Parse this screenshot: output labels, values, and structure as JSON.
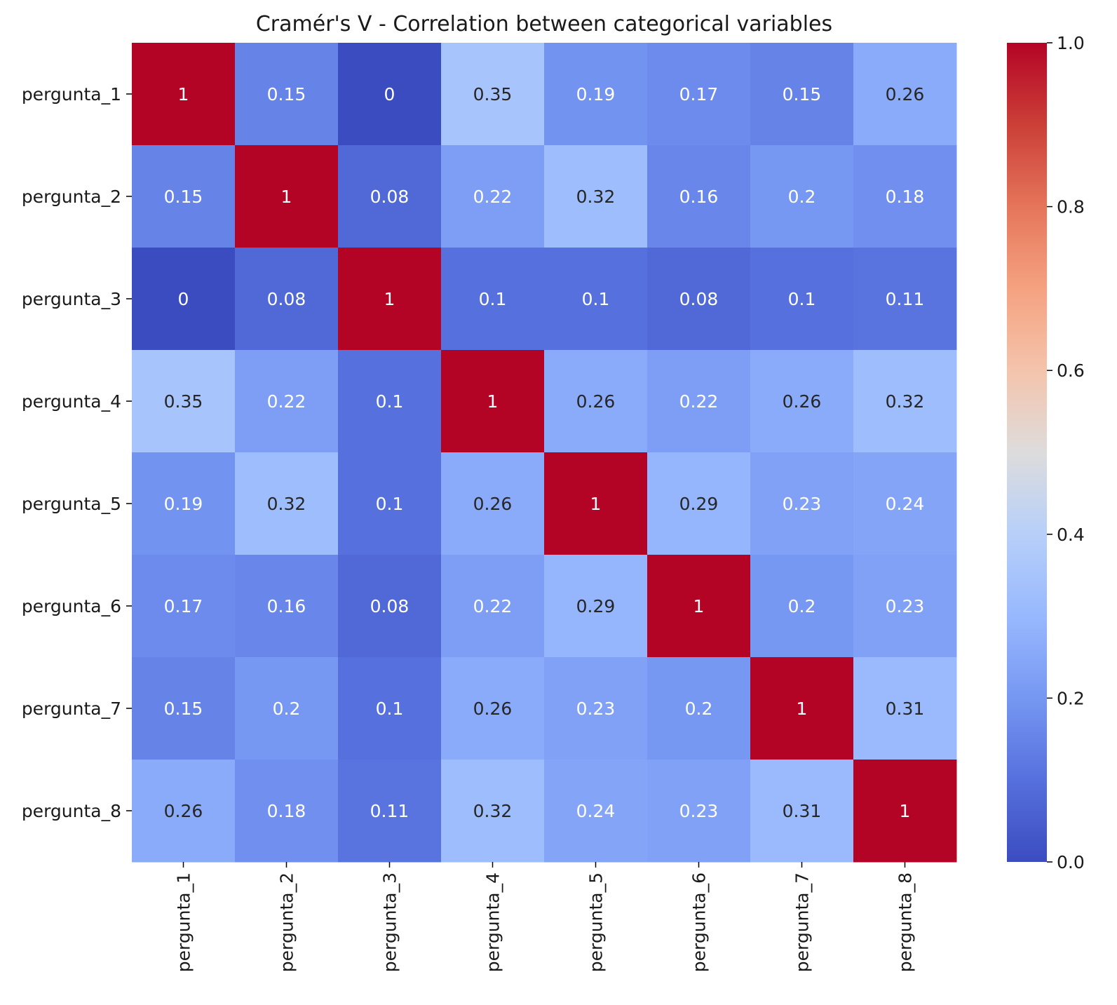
{
  "chart_data": {
    "type": "heatmap",
    "title": "Cramér's V - Correlation between categorical variables",
    "xlabel": "",
    "ylabel": "",
    "x_categories": [
      "pergunta_1",
      "pergunta_2",
      "pergunta_3",
      "pergunta_4",
      "pergunta_5",
      "pergunta_6",
      "pergunta_7",
      "pergunta_8"
    ],
    "y_categories": [
      "pergunta_1",
      "pergunta_2",
      "pergunta_3",
      "pergunta_4",
      "pergunta_5",
      "pergunta_6",
      "pergunta_7",
      "pergunta_8"
    ],
    "matrix": [
      [
        1,
        0.15,
        0,
        0.35,
        0.19,
        0.17,
        0.15,
        0.26
      ],
      [
        0.15,
        1,
        0.08,
        0.22,
        0.32,
        0.16,
        0.2,
        0.18
      ],
      [
        0,
        0.08,
        1,
        0.1,
        0.1,
        0.08,
        0.1,
        0.11
      ],
      [
        0.35,
        0.22,
        0.1,
        1,
        0.26,
        0.22,
        0.26,
        0.32
      ],
      [
        0.19,
        0.32,
        0.1,
        0.26,
        1,
        0.29,
        0.23,
        0.24
      ],
      [
        0.17,
        0.16,
        0.08,
        0.22,
        0.29,
        1,
        0.2,
        0.23
      ],
      [
        0.15,
        0.2,
        0.1,
        0.26,
        0.23,
        0.2,
        1,
        0.31
      ],
      [
        0.26,
        0.18,
        0.11,
        0.32,
        0.24,
        0.23,
        0.31,
        1
      ]
    ],
    "cell_labels": [
      [
        "1",
        "0.15",
        "0",
        "0.35",
        "0.19",
        "0.17",
        "0.15",
        "0.26"
      ],
      [
        "0.15",
        "1",
        "0.08",
        "0.22",
        "0.32",
        "0.16",
        "0.2",
        "0.18"
      ],
      [
        "0",
        "0.08",
        "1",
        "0.1",
        "0.1",
        "0.08",
        "0.1",
        "0.11"
      ],
      [
        "0.35",
        "0.22",
        "0.1",
        "1",
        "0.26",
        "0.22",
        "0.26",
        "0.32"
      ],
      [
        "0.19",
        "0.32",
        "0.1",
        "0.26",
        "1",
        "0.29",
        "0.23",
        "0.24"
      ],
      [
        "0.17",
        "0.16",
        "0.08",
        "0.22",
        "0.29",
        "1",
        "0.2",
        "0.23"
      ],
      [
        "0.15",
        "0.2",
        "0.1",
        "0.26",
        "0.23",
        "0.2",
        "1",
        "0.31"
      ],
      [
        "0.26",
        "0.18",
        "0.11",
        "0.32",
        "0.24",
        "0.23",
        "0.31",
        "1"
      ]
    ],
    "colorscale": "coolwarm",
    "vmin": 0,
    "vmax": 1,
    "colorbar": {
      "ticks": [
        0,
        0.2,
        0.4,
        0.6,
        0.8,
        1
      ],
      "tick_labels": [
        "0.0",
        "0.2",
        "0.4",
        "0.6",
        "0.8",
        "1.0"
      ]
    },
    "grid": false,
    "legend": "colorbar right"
  }
}
